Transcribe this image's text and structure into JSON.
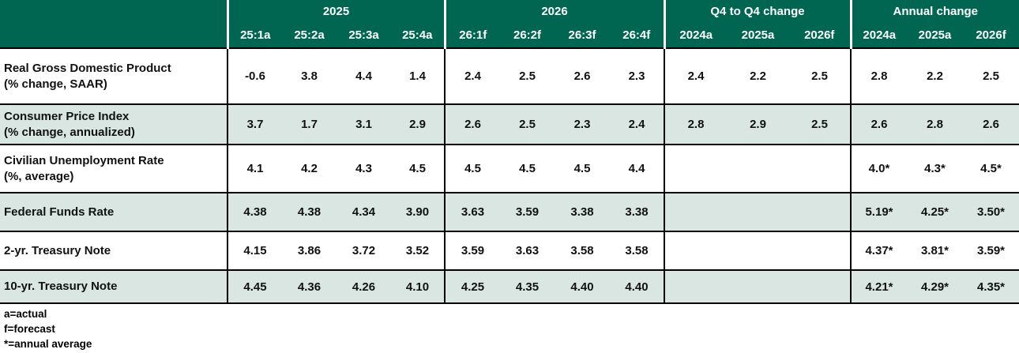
{
  "table": {
    "header": {
      "groups": [
        {
          "label": "2025",
          "cols": [
            "25:1a",
            "25:2a",
            "25:3a",
            "25:4a"
          ]
        },
        {
          "label": "2026",
          "cols": [
            "26:1f",
            "26:2f",
            "26:3f",
            "26:4f"
          ]
        },
        {
          "label": "Q4 to Q4 change",
          "cols": [
            "2024a",
            "2025a",
            "2026f"
          ]
        },
        {
          "label": "Annual change",
          "cols": [
            "2024a",
            "2025a",
            "2026f"
          ]
        }
      ]
    },
    "rows": [
      {
        "label": "Real Gross Domestic Product",
        "sublabel": "(% change, SAAR)",
        "shaded": false,
        "values": [
          "-0.6",
          "3.8",
          "4.4",
          "1.4",
          "2.4",
          "2.5",
          "2.6",
          "2.3",
          "2.4",
          "2.2",
          "2.5",
          "2.8",
          "2.2",
          "2.5"
        ]
      },
      {
        "label": "Consumer Price Index",
        "sublabel": "(% change, annualized)",
        "shaded": true,
        "values": [
          "3.7",
          "1.7",
          "3.1",
          "2.9",
          "2.6",
          "2.5",
          "2.3",
          "2.4",
          "2.8",
          "2.9",
          "2.5",
          "2.6",
          "2.8",
          "2.6"
        ]
      },
      {
        "label": "Civilian Unemployment Rate",
        "sublabel": "(%, average)",
        "shaded": false,
        "values": [
          "4.1",
          "4.2",
          "4.3",
          "4.5",
          "4.5",
          "4.5",
          "4.5",
          "4.4",
          "",
          "",
          "",
          "4.0*",
          "4.3*",
          "4.5*"
        ]
      },
      {
        "label": "Federal Funds Rate",
        "sublabel": "",
        "shaded": true,
        "values": [
          "4.38",
          "4.38",
          "4.34",
          "3.90",
          "3.63",
          "3.59",
          "3.38",
          "3.38",
          "",
          "",
          "",
          "5.19*",
          "4.25*",
          "3.50*"
        ]
      },
      {
        "label": "2-yr. Treasury Note",
        "sublabel": "",
        "shaded": false,
        "values": [
          "4.15",
          "3.86",
          "3.72",
          "3.52",
          "3.59",
          "3.63",
          "3.58",
          "3.58",
          "",
          "",
          "",
          "4.37*",
          "3.81*",
          "3.59*"
        ]
      },
      {
        "label": "10-yr. Treasury Note",
        "sublabel": "",
        "shaded": true,
        "values": [
          "4.45",
          "4.36",
          "4.26",
          "4.10",
          "4.25",
          "4.35",
          "4.40",
          "4.40",
          "",
          "",
          "",
          "4.21*",
          "4.29*",
          "4.35*"
        ]
      }
    ],
    "footnotes": [
      "a=actual",
      "f=forecast",
      "*=annual average"
    ]
  },
  "colors": {
    "header_green": "#006652",
    "row_shade": "#d9e6e1",
    "border": "#000000"
  }
}
